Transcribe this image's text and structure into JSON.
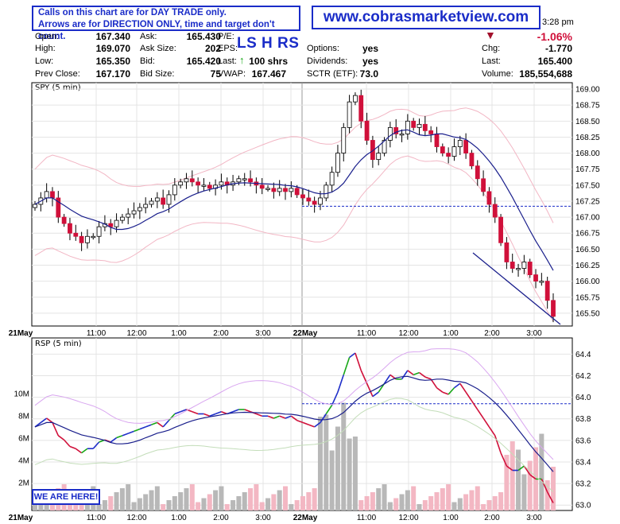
{
  "notice": {
    "line1": "Calls on this chart are for DAY TRADE only.",
    "line2": "Arrows are for DIRECTION ONLY, time and target don't count."
  },
  "website": "www.cobrasmarketview.com",
  "badge": "LS H RS",
  "time": "3:28 pm",
  "quote": {
    "open_label": "Open:",
    "open": "167.340",
    "high_label": "High:",
    "high": "169.070",
    "low_label": "Low:",
    "low": "165.350",
    "prev_label": "Prev Close:",
    "prev": "167.170",
    "ask_label": "Ask:",
    "ask": "165.430",
    "asksize_label": "Ask Size:",
    "asksize": "202",
    "bid_label": "Bid:",
    "bid": "165.420",
    "bidsize_label": "Bid Size:",
    "bidsize": "75",
    "pe_label": "P/E:",
    "eps_label": "EPS:",
    "last_label": "Last:",
    "last_shrs": "100 shrs",
    "vwap_label": "VWAP:",
    "vwap": "167.467",
    "options_label": "Options:",
    "options": "yes",
    "dividends_label": "Dividends:",
    "dividends": "yes",
    "sctr_label": "SCTR (ETF):",
    "sctr": "73.0",
    "pct_change": "-1.06%",
    "chg_label": "Chg:",
    "chg": "-1.770",
    "last2_label": "Last:",
    "last2": "165.400",
    "volume_label": "Volume:",
    "volume": "185,554,688"
  },
  "here_label": "WE ARE HERE!",
  "colors": {
    "up": "#1f2fc9",
    "down": "#d0103a",
    "ma": "#1a1f8c",
    "band": "#f2b6c4",
    "grid": "#e4e4e4",
    "dashed": "#1a2cc8",
    "green": "#18a818",
    "vol_gray": "#b8b8b8",
    "vol_pink": "#f3b7c3"
  },
  "chart_data": [
    {
      "type": "candlestick",
      "title": "SPY (5 min)",
      "ylim": [
        165.3,
        169.1
      ],
      "y_ticks": [
        "169.00",
        "168.75",
        "168.50",
        "168.25",
        "168.00",
        "167.75",
        "167.50",
        "167.25",
        "167.00",
        "166.75",
        "166.50",
        "166.25",
        "166.00",
        "165.75",
        "165.50"
      ],
      "x_ticks": [
        "21May",
        "11:00",
        "12:00",
        "1:00",
        "2:00",
        "3:00",
        "22May",
        "11:00",
        "12:00",
        "1:00",
        "2:00",
        "3:00"
      ],
      "reference_line": 167.17,
      "close_path": [
        167.2,
        167.3,
        167.4,
        167.3,
        167.0,
        166.9,
        166.75,
        166.7,
        166.6,
        166.7,
        166.7,
        166.85,
        166.9,
        166.85,
        166.95,
        167.0,
        167.05,
        167.1,
        167.15,
        167.2,
        167.25,
        167.3,
        167.2,
        167.35,
        167.5,
        167.55,
        167.6,
        167.55,
        167.5,
        167.5,
        167.45,
        167.5,
        167.55,
        167.5,
        167.55,
        167.6,
        167.6,
        167.55,
        167.5,
        167.45,
        167.45,
        167.4,
        167.45,
        167.4,
        167.45,
        167.35,
        167.3,
        167.25,
        167.2,
        167.3,
        167.5,
        167.7,
        168.0,
        168.4,
        168.8,
        168.9,
        168.5,
        168.2,
        167.9,
        168.0,
        168.2,
        168.4,
        168.3,
        168.3,
        168.5,
        168.4,
        168.45,
        168.35,
        168.3,
        168.1,
        168.0,
        167.95,
        168.1,
        168.2,
        168.0,
        167.8,
        167.6,
        167.4,
        167.2,
        167.0,
        166.6,
        166.3,
        166.2,
        166.2,
        166.3,
        166.1,
        166.0,
        166.0,
        165.7,
        165.45
      ]
    },
    {
      "type": "line",
      "title": "RSP (5 min)",
      "ylim": [
        62.95,
        64.55
      ],
      "y_ticks_right": [
        "64.4",
        "64.2",
        "64.0",
        "63.8",
        "63.6",
        "63.4",
        "63.2",
        "63.0"
      ],
      "y_ticks_left": [
        "10M",
        "8M",
        "6M",
        "4M",
        "2M"
      ],
      "x_ticks": [
        "21May",
        "11:00",
        "12:00",
        "1:00",
        "2:00",
        "3:00",
        "22May",
        "11:00",
        "12:00",
        "1:00",
        "2:00",
        "3:00"
      ],
      "reference_line": 63.94
    }
  ]
}
